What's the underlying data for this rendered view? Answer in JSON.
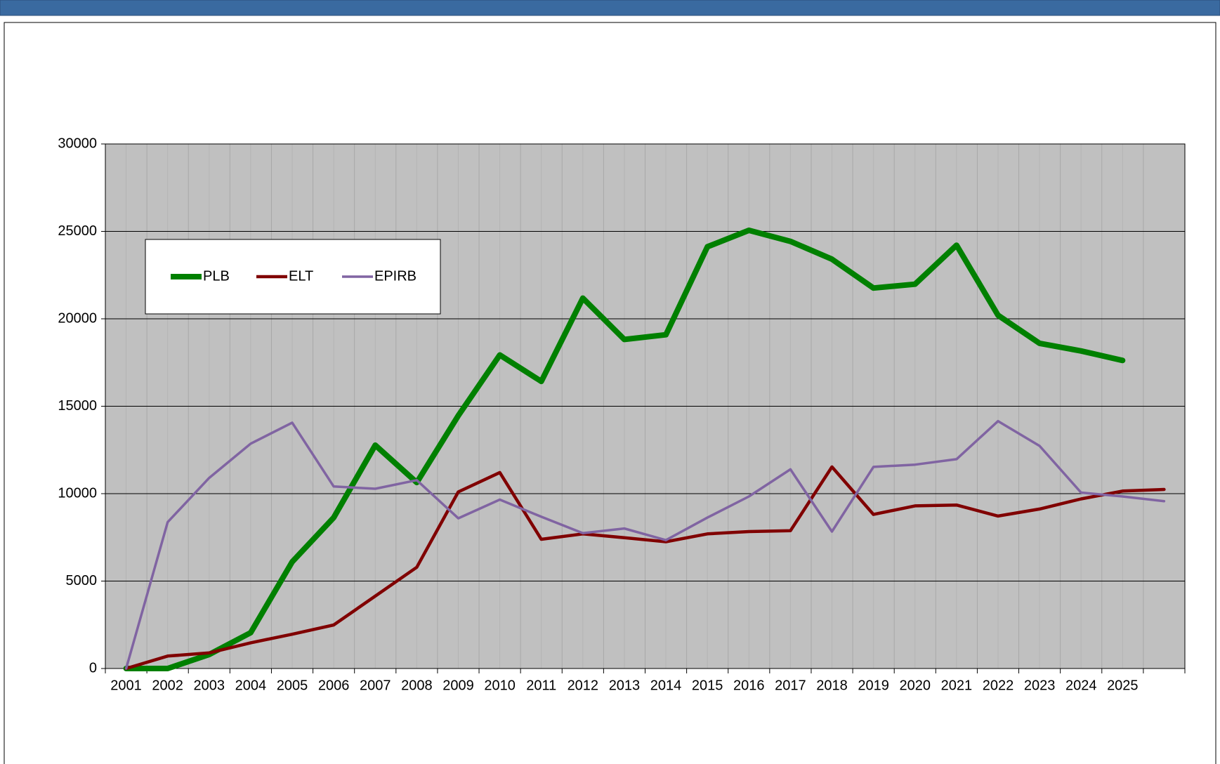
{
  "chart_data": {
    "type": "line",
    "categories": [
      "2001",
      "2002",
      "2003",
      "2004",
      "2005",
      "2006",
      "2007",
      "2008",
      "2009",
      "2010",
      "2011",
      "2012",
      "2013",
      "2014",
      "2015",
      "2016",
      "2017",
      "2018",
      "2019",
      "2020",
      "2021",
      "2022",
      "2023",
      "2024",
      "2025",
      null
    ],
    "series": [
      {
        "name": "PLB",
        "color": "#008000",
        "values": [
          0,
          0,
          800,
          2050,
          6100,
          8630,
          12770,
          10640,
          14460,
          17930,
          16420,
          21180,
          18820,
          19090,
          24120,
          25060,
          24430,
          23410,
          21760,
          21980,
          24210,
          20200,
          18600,
          18160,
          17620,
          null
        ]
      },
      {
        "name": "ELT",
        "color": "#800000",
        "values": [
          0,
          710,
          890,
          1470,
          1960,
          2490,
          4140,
          5790,
          10100,
          11210,
          7390,
          7700,
          7480,
          7250,
          7700,
          7830,
          7880,
          11530,
          8810,
          9300,
          9350,
          8720,
          9120,
          9700,
          10150,
          10240
        ]
      },
      {
        "name": "EPIRB",
        "color": "#8064a2",
        "values": [
          0,
          8370,
          10900,
          12860,
          14060,
          10410,
          10280,
          10770,
          8590,
          9660,
          8680,
          7740,
          8010,
          7340,
          8630,
          9840,
          11390,
          7830,
          11530,
          11660,
          11970,
          14150,
          12730,
          10060,
          9840,
          9570
        ]
      }
    ],
    "ylim": [
      0,
      30000
    ],
    "yticks": [
      0,
      5000,
      10000,
      15000,
      20000,
      25000,
      30000
    ],
    "grid": true
  }
}
